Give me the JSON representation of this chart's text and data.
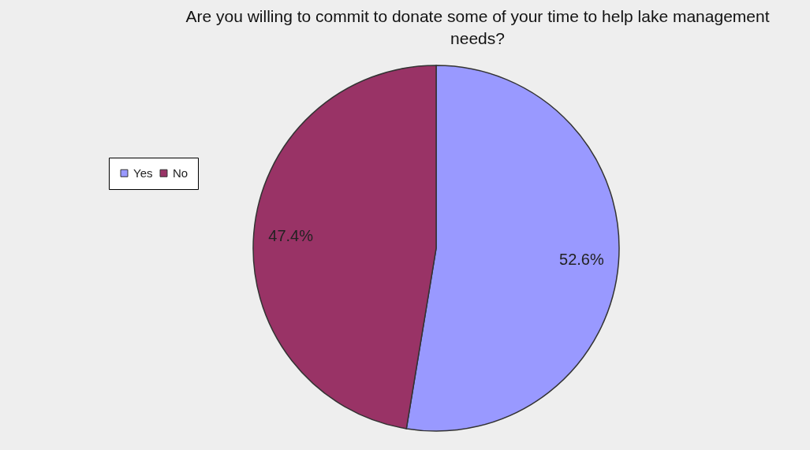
{
  "chart_data": {
    "type": "pie",
    "title": "Are you willing to commit to donate some of your time to help lake management needs?",
    "categories": [
      "Yes",
      "No"
    ],
    "values": [
      52.6,
      47.4
    ],
    "colors": [
      "#9999ff",
      "#993366"
    ],
    "value_labels": [
      "52.6%",
      "47.4%"
    ],
    "legend": "left"
  }
}
